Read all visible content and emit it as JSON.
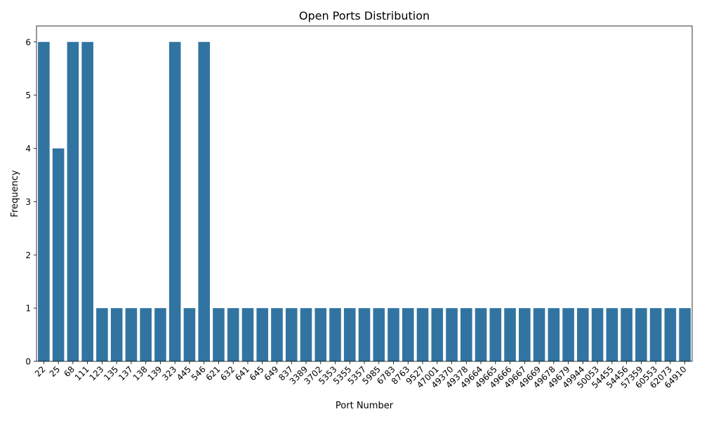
{
  "chart_data": {
    "type": "bar",
    "title": "Open Ports Distribution",
    "xlabel": "Port Number",
    "ylabel": "Frequency",
    "ylim": [
      0,
      6.3
    ],
    "yticks": [
      0,
      1,
      2,
      3,
      4,
      5,
      6
    ],
    "grid": false,
    "bar_color": "#3274a1",
    "categories": [
      "22",
      "25",
      "68",
      "111",
      "123",
      "135",
      "137",
      "138",
      "139",
      "323",
      "445",
      "546",
      "621",
      "632",
      "641",
      "645",
      "649",
      "837",
      "3389",
      "3702",
      "5353",
      "5355",
      "5357",
      "5985",
      "6783",
      "8763",
      "9527",
      "47001",
      "49370",
      "49378",
      "49664",
      "49665",
      "49666",
      "49667",
      "49669",
      "49678",
      "49679",
      "49944",
      "50053",
      "54455",
      "54456",
      "57359",
      "60553",
      "62073",
      "64910"
    ],
    "values": [
      6,
      4,
      6,
      6,
      1,
      1,
      1,
      1,
      1,
      6,
      1,
      6,
      1,
      1,
      1,
      1,
      1,
      1,
      1,
      1,
      1,
      1,
      1,
      1,
      1,
      1,
      1,
      1,
      1,
      1,
      1,
      1,
      1,
      1,
      1,
      1,
      1,
      1,
      1,
      1,
      1,
      1,
      1,
      1,
      1
    ]
  }
}
